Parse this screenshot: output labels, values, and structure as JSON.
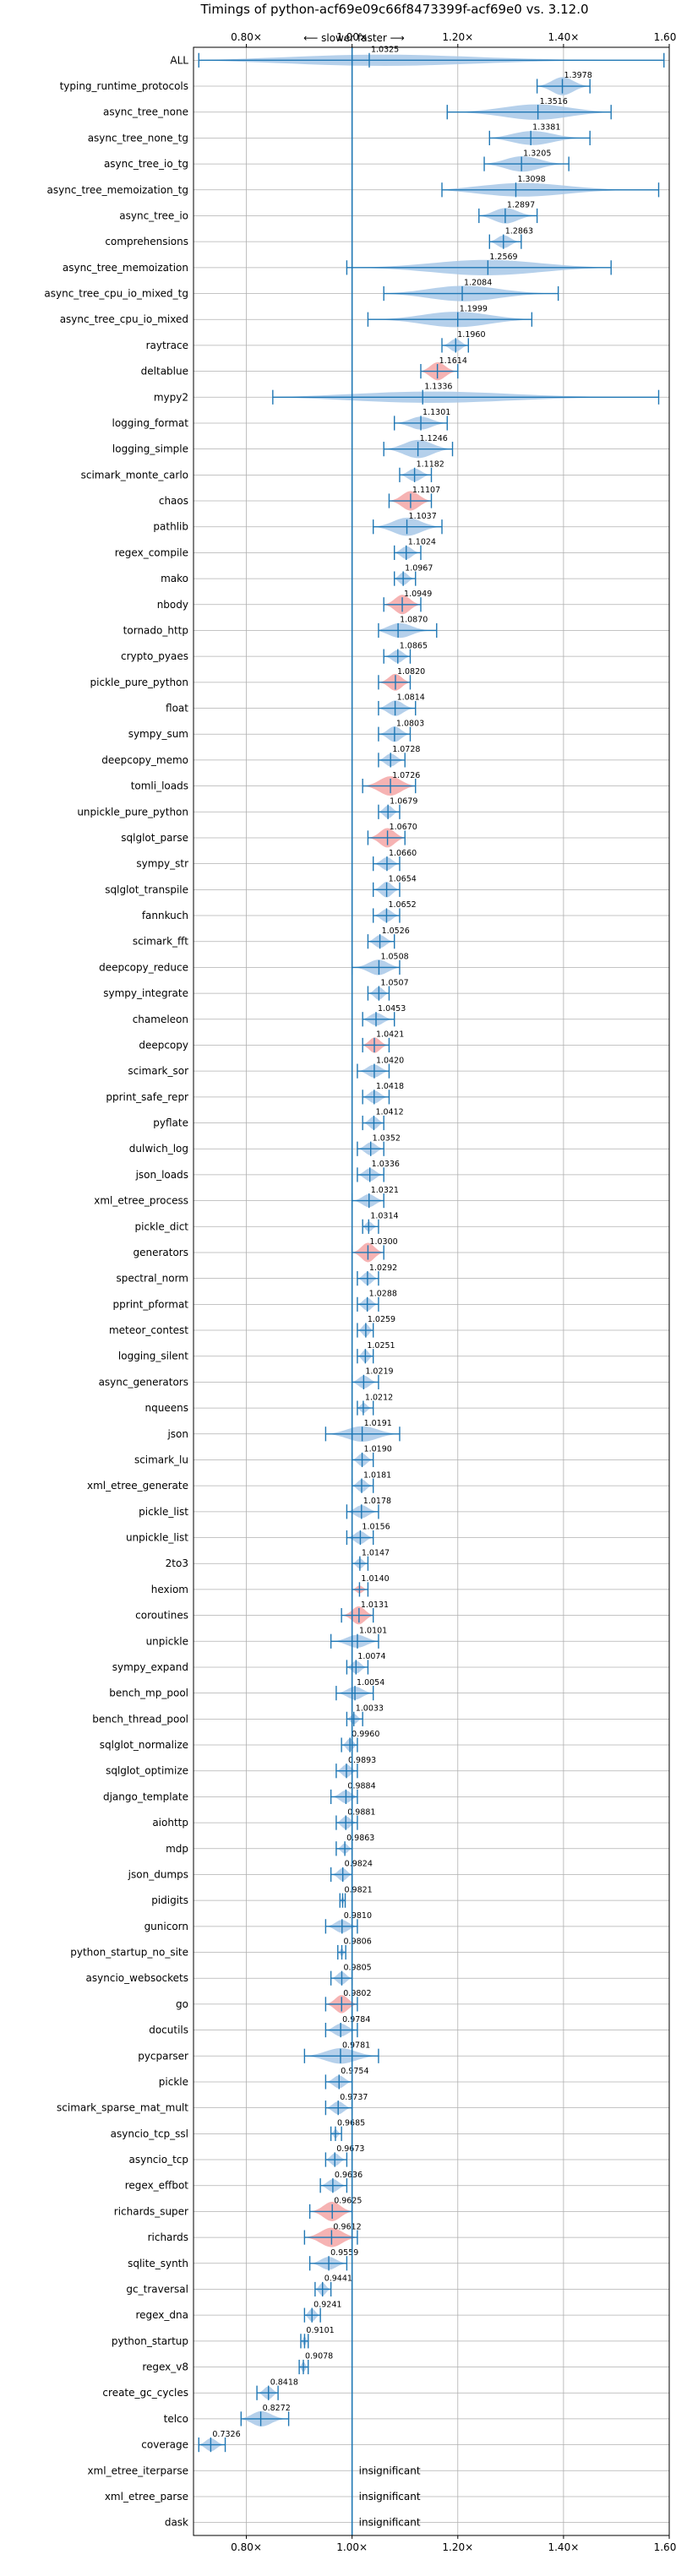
{
  "chart_data": {
    "type": "violin",
    "title": "Timings of python-acf69e09c66f8473399f-acf69e0 vs. 3.12.0",
    "direction_hint": "⟵ slower   faster ⟶",
    "xlim": [
      0.7,
      1.6
    ],
    "x_ticks": [
      0.8,
      1.0,
      1.2,
      1.4,
      1.6
    ],
    "x_tick_labels": [
      "0.80×",
      "1.00×",
      "1.20×",
      "1.40×",
      "1.60×"
    ],
    "reference_line": 1.0,
    "grid": true,
    "colors": {
      "faster": "#a8c8e8",
      "slower": "#f4a6a6",
      "line": "#1f77b4"
    },
    "benchmarks": [
      {
        "name": "ALL",
        "value": "1.0325",
        "mean": 1.0325,
        "lo": 0.71,
        "hi": 1.59,
        "w": 0.45,
        "c": "b"
      },
      {
        "name": "typing_runtime_protocols",
        "value": "1.3978",
        "mean": 1.3978,
        "lo": 1.35,
        "hi": 1.45,
        "w": 0.7,
        "c": "b"
      },
      {
        "name": "async_tree_none",
        "value": "1.3516",
        "mean": 1.3516,
        "lo": 1.18,
        "hi": 1.49,
        "w": 0.6,
        "c": "b"
      },
      {
        "name": "async_tree_none_tg",
        "value": "1.3381",
        "mean": 1.3381,
        "lo": 1.26,
        "hi": 1.45,
        "w": 0.55,
        "c": "b"
      },
      {
        "name": "async_tree_io_tg",
        "value": "1.3205",
        "mean": 1.3205,
        "lo": 1.25,
        "hi": 1.41,
        "w": 0.6,
        "c": "b"
      },
      {
        "name": "async_tree_memoization_tg",
        "value": "1.3098",
        "mean": 1.3098,
        "lo": 1.17,
        "hi": 1.58,
        "w": 0.55,
        "c": "b"
      },
      {
        "name": "async_tree_io",
        "value": "1.2897",
        "mean": 1.2897,
        "lo": 1.24,
        "hi": 1.35,
        "w": 0.6,
        "c": "b"
      },
      {
        "name": "comprehensions",
        "value": "1.2863",
        "mean": 1.2863,
        "lo": 1.26,
        "hi": 1.32,
        "w": 0.5,
        "c": "b"
      },
      {
        "name": "async_tree_memoization",
        "value": "1.2569",
        "mean": 1.2569,
        "lo": 0.99,
        "hi": 1.49,
        "w": 0.6,
        "c": "b"
      },
      {
        "name": "async_tree_cpu_io_mixed_tg",
        "value": "1.2084",
        "mean": 1.2084,
        "lo": 1.06,
        "hi": 1.39,
        "w": 0.6,
        "c": "b"
      },
      {
        "name": "async_tree_cpu_io_mixed",
        "value": "1.1999",
        "mean": 1.1999,
        "lo": 1.03,
        "hi": 1.34,
        "w": 0.6,
        "c": "b"
      },
      {
        "name": "raytrace",
        "value": "1.1960",
        "mean": 1.196,
        "lo": 1.17,
        "hi": 1.22,
        "w": 0.5,
        "c": "b"
      },
      {
        "name": "deltablue",
        "value": "1.1614",
        "mean": 1.1614,
        "lo": 1.13,
        "hi": 1.2,
        "w": 0.7,
        "c": "r"
      },
      {
        "name": "mypy2",
        "value": "1.1336",
        "mean": 1.1336,
        "lo": 0.85,
        "hi": 1.58,
        "w": 0.45,
        "c": "b"
      },
      {
        "name": "logging_format",
        "value": "1.1301",
        "mean": 1.1301,
        "lo": 1.08,
        "hi": 1.18,
        "w": 0.5,
        "c": "b"
      },
      {
        "name": "logging_simple",
        "value": "1.1246",
        "mean": 1.1246,
        "lo": 1.06,
        "hi": 1.19,
        "w": 0.7,
        "c": "b"
      },
      {
        "name": "scimark_monte_carlo",
        "value": "1.1182",
        "mean": 1.1182,
        "lo": 1.09,
        "hi": 1.15,
        "w": 0.5,
        "c": "b"
      },
      {
        "name": "chaos",
        "value": "1.1107",
        "mean": 1.1107,
        "lo": 1.07,
        "hi": 1.15,
        "w": 0.75,
        "c": "r"
      },
      {
        "name": "pathlib",
        "value": "1.1037",
        "mean": 1.1037,
        "lo": 1.04,
        "hi": 1.17,
        "w": 0.7,
        "c": "b"
      },
      {
        "name": "regex_compile",
        "value": "1.1024",
        "mean": 1.1024,
        "lo": 1.08,
        "hi": 1.13,
        "w": 0.5,
        "c": "b"
      },
      {
        "name": "mako",
        "value": "1.0967",
        "mean": 1.0967,
        "lo": 1.08,
        "hi": 1.12,
        "w": 0.5,
        "c": "b"
      },
      {
        "name": "nbody",
        "value": "1.0949",
        "mean": 1.0949,
        "lo": 1.06,
        "hi": 1.13,
        "w": 0.75,
        "c": "r"
      },
      {
        "name": "tornado_http",
        "value": "1.0870",
        "mean": 1.087,
        "lo": 1.05,
        "hi": 1.16,
        "w": 0.6,
        "c": "b"
      },
      {
        "name": "crypto_pyaes",
        "value": "1.0865",
        "mean": 1.0865,
        "lo": 1.06,
        "hi": 1.11,
        "w": 0.5,
        "c": "b"
      },
      {
        "name": "pickle_pure_python",
        "value": "1.0820",
        "mean": 1.082,
        "lo": 1.05,
        "hi": 1.11,
        "w": 0.65,
        "c": "r"
      },
      {
        "name": "float",
        "value": "1.0814",
        "mean": 1.0814,
        "lo": 1.05,
        "hi": 1.12,
        "w": 0.6,
        "c": "b"
      },
      {
        "name": "sympy_sum",
        "value": "1.0803",
        "mean": 1.0803,
        "lo": 1.05,
        "hi": 1.11,
        "w": 0.6,
        "c": "b"
      },
      {
        "name": "deepcopy_memo",
        "value": "1.0728",
        "mean": 1.0728,
        "lo": 1.05,
        "hi": 1.1,
        "w": 0.5,
        "c": "b"
      },
      {
        "name": "tomli_loads",
        "value": "1.0726",
        "mean": 1.0726,
        "lo": 1.02,
        "hi": 1.12,
        "w": 0.75,
        "c": "r"
      },
      {
        "name": "unpickle_pure_python",
        "value": "1.0679",
        "mean": 1.0679,
        "lo": 1.05,
        "hi": 1.09,
        "w": 0.5,
        "c": "b"
      },
      {
        "name": "sqlglot_parse",
        "value": "1.0670",
        "mean": 1.067,
        "lo": 1.03,
        "hi": 1.1,
        "w": 0.75,
        "c": "r"
      },
      {
        "name": "sympy_str",
        "value": "1.0660",
        "mean": 1.066,
        "lo": 1.04,
        "hi": 1.09,
        "w": 0.5,
        "c": "b"
      },
      {
        "name": "sqlglot_transpile",
        "value": "1.0654",
        "mean": 1.0654,
        "lo": 1.04,
        "hi": 1.09,
        "w": 0.6,
        "c": "b"
      },
      {
        "name": "fannkuch",
        "value": "1.0652",
        "mean": 1.0652,
        "lo": 1.04,
        "hi": 1.09,
        "w": 0.5,
        "c": "b"
      },
      {
        "name": "scimark_fft",
        "value": "1.0526",
        "mean": 1.0526,
        "lo": 1.03,
        "hi": 1.08,
        "w": 0.5,
        "c": "b"
      },
      {
        "name": "deepcopy_reduce",
        "value": "1.0508",
        "mean": 1.0508,
        "lo": 1.0,
        "hi": 1.09,
        "w": 0.6,
        "c": "b"
      },
      {
        "name": "sympy_integrate",
        "value": "1.0507",
        "mean": 1.0507,
        "lo": 1.03,
        "hi": 1.07,
        "w": 0.5,
        "c": "b"
      },
      {
        "name": "chameleon",
        "value": "1.0453",
        "mean": 1.0453,
        "lo": 1.02,
        "hi": 1.08,
        "w": 0.5,
        "c": "b"
      },
      {
        "name": "deepcopy",
        "value": "1.0421",
        "mean": 1.0421,
        "lo": 1.02,
        "hi": 1.07,
        "w": 0.6,
        "c": "r"
      },
      {
        "name": "scimark_sor",
        "value": "1.0420",
        "mean": 1.042,
        "lo": 1.01,
        "hi": 1.07,
        "w": 0.5,
        "c": "b"
      },
      {
        "name": "pprint_safe_repr",
        "value": "1.0418",
        "mean": 1.0418,
        "lo": 1.02,
        "hi": 1.07,
        "w": 0.5,
        "c": "b"
      },
      {
        "name": "pyflate",
        "value": "1.0412",
        "mean": 1.0412,
        "lo": 1.02,
        "hi": 1.06,
        "w": 0.5,
        "c": "b"
      },
      {
        "name": "dulwich_log",
        "value": "1.0352",
        "mean": 1.0352,
        "lo": 1.01,
        "hi": 1.06,
        "w": 0.5,
        "c": "b"
      },
      {
        "name": "json_loads",
        "value": "1.0336",
        "mean": 1.0336,
        "lo": 1.01,
        "hi": 1.06,
        "w": 0.5,
        "c": "b"
      },
      {
        "name": "xml_etree_process",
        "value": "1.0321",
        "mean": 1.0321,
        "lo": 1.0,
        "hi": 1.06,
        "w": 0.5,
        "c": "b"
      },
      {
        "name": "pickle_dict",
        "value": "1.0314",
        "mean": 1.0314,
        "lo": 1.02,
        "hi": 1.05,
        "w": 0.4,
        "c": "b"
      },
      {
        "name": "generators",
        "value": "1.0300",
        "mean": 1.03,
        "lo": 1.0,
        "hi": 1.06,
        "w": 0.75,
        "c": "r"
      },
      {
        "name": "spectral_norm",
        "value": "1.0292",
        "mean": 1.0292,
        "lo": 1.01,
        "hi": 1.05,
        "w": 0.5,
        "c": "b"
      },
      {
        "name": "pprint_pformat",
        "value": "1.0288",
        "mean": 1.0288,
        "lo": 1.01,
        "hi": 1.05,
        "w": 0.5,
        "c": "b"
      },
      {
        "name": "meteor_contest",
        "value": "1.0259",
        "mean": 1.0259,
        "lo": 1.01,
        "hi": 1.04,
        "w": 0.5,
        "c": "b"
      },
      {
        "name": "logging_silent",
        "value": "1.0251",
        "mean": 1.0251,
        "lo": 1.01,
        "hi": 1.04,
        "w": 0.5,
        "c": "b"
      },
      {
        "name": "async_generators",
        "value": "1.0219",
        "mean": 1.0219,
        "lo": 1.0,
        "hi": 1.05,
        "w": 0.5,
        "c": "b"
      },
      {
        "name": "nqueens",
        "value": "1.0212",
        "mean": 1.0212,
        "lo": 1.01,
        "hi": 1.04,
        "w": 0.4,
        "c": "b"
      },
      {
        "name": "json",
        "value": "1.0191",
        "mean": 1.0191,
        "lo": 0.95,
        "hi": 1.09,
        "w": 0.6,
        "c": "b"
      },
      {
        "name": "scimark_lu",
        "value": "1.0190",
        "mean": 1.019,
        "lo": 1.0,
        "hi": 1.04,
        "w": 0.5,
        "c": "b"
      },
      {
        "name": "xml_etree_generate",
        "value": "1.0181",
        "mean": 1.0181,
        "lo": 1.0,
        "hi": 1.04,
        "w": 0.5,
        "c": "b"
      },
      {
        "name": "pickle_list",
        "value": "1.0178",
        "mean": 1.0178,
        "lo": 0.99,
        "hi": 1.05,
        "w": 0.5,
        "c": "b"
      },
      {
        "name": "unpickle_list",
        "value": "1.0156",
        "mean": 1.0156,
        "lo": 0.99,
        "hi": 1.04,
        "w": 0.5,
        "c": "b"
      },
      {
        "name": "2to3",
        "value": "1.0147",
        "mean": 1.0147,
        "lo": 1.0,
        "hi": 1.03,
        "w": 0.4,
        "c": "b"
      },
      {
        "name": "hexiom",
        "value": "1.0140",
        "mean": 1.014,
        "lo": 1.0,
        "hi": 1.03,
        "w": 0.3,
        "c": "r"
      },
      {
        "name": "coroutines",
        "value": "1.0131",
        "mean": 1.0131,
        "lo": 0.98,
        "hi": 1.04,
        "w": 0.7,
        "c": "r"
      },
      {
        "name": "unpickle",
        "value": "1.0101",
        "mean": 1.0101,
        "lo": 0.96,
        "hi": 1.05,
        "w": 0.5,
        "c": "b"
      },
      {
        "name": "sympy_expand",
        "value": "1.0074",
        "mean": 1.0074,
        "lo": 0.99,
        "hi": 1.03,
        "w": 0.5,
        "c": "b"
      },
      {
        "name": "bench_mp_pool",
        "value": "1.0054",
        "mean": 1.0054,
        "lo": 0.97,
        "hi": 1.04,
        "w": 0.5,
        "c": "b"
      },
      {
        "name": "bench_thread_pool",
        "value": "1.0033",
        "mean": 1.0033,
        "lo": 0.99,
        "hi": 1.02,
        "w": 0.4,
        "c": "b"
      },
      {
        "name": "sqlglot_normalize",
        "value": "0.9960",
        "mean": 0.996,
        "lo": 0.98,
        "hi": 1.01,
        "w": 0.5,
        "c": "b"
      },
      {
        "name": "sqlglot_optimize",
        "value": "0.9893",
        "mean": 0.9893,
        "lo": 0.97,
        "hi": 1.01,
        "w": 0.5,
        "c": "b"
      },
      {
        "name": "django_template",
        "value": "0.9884",
        "mean": 0.9884,
        "lo": 0.96,
        "hi": 1.01,
        "w": 0.5,
        "c": "b"
      },
      {
        "name": "aiohttp",
        "value": "0.9881",
        "mean": 0.9881,
        "lo": 0.97,
        "hi": 1.01,
        "w": 0.5,
        "c": "b"
      },
      {
        "name": "mdp",
        "value": "0.9863",
        "mean": 0.9863,
        "lo": 0.97,
        "hi": 1.0,
        "w": 0.4,
        "c": "b"
      },
      {
        "name": "json_dumps",
        "value": "0.9824",
        "mean": 0.9824,
        "lo": 0.96,
        "hi": 1.0,
        "w": 0.5,
        "c": "b"
      },
      {
        "name": "pidigits",
        "value": "0.9821",
        "mean": 0.9821,
        "lo": 0.977,
        "hi": 0.987,
        "w": 0.3,
        "c": "b"
      },
      {
        "name": "gunicorn",
        "value": "0.9810",
        "mean": 0.981,
        "lo": 0.95,
        "hi": 1.01,
        "w": 0.5,
        "c": "b"
      },
      {
        "name": "python_startup_no_site",
        "value": "0.9806",
        "mean": 0.9806,
        "lo": 0.973,
        "hi": 0.988,
        "w": 0.3,
        "c": "b"
      },
      {
        "name": "asyncio_websockets",
        "value": "0.9805",
        "mean": 0.9805,
        "lo": 0.96,
        "hi": 1.0,
        "w": 0.5,
        "c": "b"
      },
      {
        "name": "go",
        "value": "0.9802",
        "mean": 0.9802,
        "lo": 0.95,
        "hi": 1.01,
        "w": 0.7,
        "c": "r"
      },
      {
        "name": "docutils",
        "value": "0.9784",
        "mean": 0.9784,
        "lo": 0.95,
        "hi": 1.01,
        "w": 0.5,
        "c": "b"
      },
      {
        "name": "pycparser",
        "value": "0.9781",
        "mean": 0.9781,
        "lo": 0.91,
        "hi": 1.05,
        "w": 0.6,
        "c": "b"
      },
      {
        "name": "pickle",
        "value": "0.9754",
        "mean": 0.9754,
        "lo": 0.95,
        "hi": 1.0,
        "w": 0.5,
        "c": "b"
      },
      {
        "name": "scimark_sparse_mat_mult",
        "value": "0.9737",
        "mean": 0.9737,
        "lo": 0.95,
        "hi": 1.0,
        "w": 0.5,
        "c": "b"
      },
      {
        "name": "asyncio_tcp_ssl",
        "value": "0.9685",
        "mean": 0.9685,
        "lo": 0.96,
        "hi": 0.98,
        "w": 0.35,
        "c": "b"
      },
      {
        "name": "asyncio_tcp",
        "value": "0.9673",
        "mean": 0.9673,
        "lo": 0.95,
        "hi": 0.99,
        "w": 0.5,
        "c": "b"
      },
      {
        "name": "regex_effbot",
        "value": "0.9636",
        "mean": 0.9636,
        "lo": 0.94,
        "hi": 0.99,
        "w": 0.5,
        "c": "b"
      },
      {
        "name": "richards_super",
        "value": "0.9625",
        "mean": 0.9625,
        "lo": 0.92,
        "hi": 1.0,
        "w": 0.75,
        "c": "r"
      },
      {
        "name": "richards",
        "value": "0.9612",
        "mean": 0.9612,
        "lo": 0.91,
        "hi": 1.01,
        "w": 0.75,
        "c": "r"
      },
      {
        "name": "sqlite_synth",
        "value": "0.9559",
        "mean": 0.9559,
        "lo": 0.92,
        "hi": 0.99,
        "w": 0.5,
        "c": "b"
      },
      {
        "name": "gc_traversal",
        "value": "0.9441",
        "mean": 0.9441,
        "lo": 0.93,
        "hi": 0.96,
        "w": 0.5,
        "c": "b"
      },
      {
        "name": "regex_dna",
        "value": "0.9241",
        "mean": 0.9241,
        "lo": 0.91,
        "hi": 0.94,
        "w": 0.5,
        "c": "b"
      },
      {
        "name": "python_startup",
        "value": "0.9101",
        "mean": 0.9101,
        "lo": 0.903,
        "hi": 0.917,
        "w": 0.35,
        "c": "b"
      },
      {
        "name": "regex_v8",
        "value": "0.9078",
        "mean": 0.9078,
        "lo": 0.9,
        "hi": 0.917,
        "w": 0.4,
        "c": "b"
      },
      {
        "name": "create_gc_cycles",
        "value": "0.8418",
        "mean": 0.8418,
        "lo": 0.82,
        "hi": 0.86,
        "w": 0.5,
        "c": "b"
      },
      {
        "name": "telco",
        "value": "0.8272",
        "mean": 0.8272,
        "lo": 0.79,
        "hi": 0.88,
        "w": 0.6,
        "c": "b"
      },
      {
        "name": "coverage",
        "value": "0.7326",
        "mean": 0.7326,
        "lo": 0.71,
        "hi": 0.76,
        "w": 0.5,
        "c": "b"
      },
      {
        "name": "xml_etree_iterparse",
        "value": "insignificant",
        "c": "n"
      },
      {
        "name": "xml_etree_parse",
        "value": "insignificant",
        "c": "n"
      },
      {
        "name": "dask",
        "value": "insignificant",
        "c": "n"
      }
    ]
  }
}
